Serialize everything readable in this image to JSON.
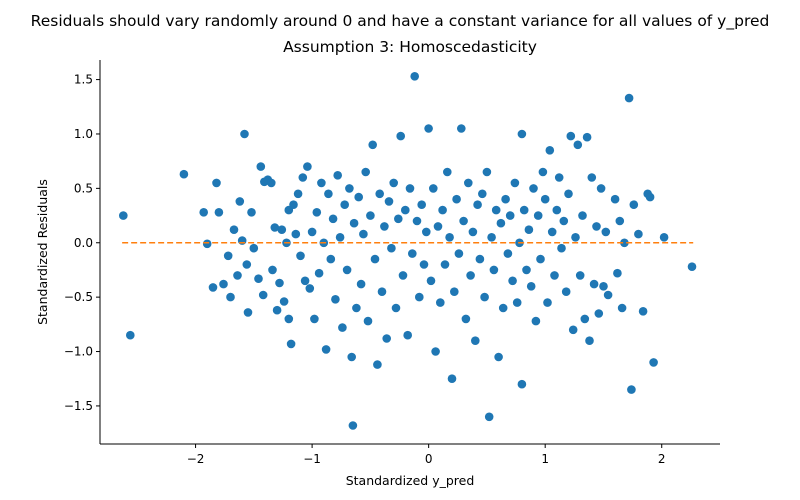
{
  "chart_data": {
    "type": "scatter",
    "suptitle": "Residuals should vary randomly around 0 and have a constant variance for all values of y_pred",
    "title": "Assumption 3: Homoscedasticity",
    "xlabel": "Standardized y_pred",
    "ylabel": "Standardized Residuals",
    "xlim": [
      -2.82,
      2.5
    ],
    "ylim": [
      -1.85,
      1.68
    ],
    "xticks": [
      -2,
      -1,
      0,
      1,
      2
    ],
    "xtick_labels": [
      "−2",
      "−1",
      "0",
      "1",
      "2"
    ],
    "yticks": [
      -1.5,
      -1.0,
      -0.5,
      0.0,
      0.5,
      1.0,
      1.5
    ],
    "ytick_labels": [
      "−1.5",
      "−1.0",
      "−0.5",
      "0.0",
      "0.5",
      "1.0",
      "1.5"
    ],
    "grid": false,
    "colors": {
      "points": "#1f77b4",
      "reference_line": "#ff7f0e"
    },
    "reference_line": {
      "y": 0,
      "x_range": [
        -2.63,
        2.27
      ],
      "style": "dashed"
    },
    "points": [
      [
        -2.62,
        0.25
      ],
      [
        -2.56,
        -0.85
      ],
      [
        -2.1,
        0.63
      ],
      [
        -1.93,
        0.28
      ],
      [
        -1.9,
        -0.01
      ],
      [
        -1.85,
        -0.41
      ],
      [
        -1.82,
        0.55
      ],
      [
        -1.8,
        0.28
      ],
      [
        -1.76,
        -0.38
      ],
      [
        -1.72,
        -0.12
      ],
      [
        -1.7,
        -0.5
      ],
      [
        -1.67,
        0.12
      ],
      [
        -1.64,
        -0.3
      ],
      [
        -1.62,
        0.38
      ],
      [
        -1.6,
        0.02
      ],
      [
        -1.58,
        1.0
      ],
      [
        -1.56,
        -0.2
      ],
      [
        -1.55,
        -0.64
      ],
      [
        -1.52,
        0.28
      ],
      [
        -1.5,
        -0.05
      ],
      [
        -1.46,
        -0.33
      ],
      [
        -1.44,
        0.7
      ],
      [
        -1.42,
        -0.48
      ],
      [
        -1.41,
        0.56
      ],
      [
        -1.38,
        0.58
      ],
      [
        -1.35,
        0.55
      ],
      [
        -1.34,
        -0.25
      ],
      [
        -1.32,
        0.14
      ],
      [
        -1.3,
        -0.62
      ],
      [
        -1.28,
        -0.37
      ],
      [
        -1.26,
        0.12
      ],
      [
        -1.24,
        -0.54
      ],
      [
        -1.22,
        0.0
      ],
      [
        -1.2,
        0.3
      ],
      [
        -1.2,
        -0.7
      ],
      [
        -1.18,
        -0.93
      ],
      [
        -1.16,
        0.35
      ],
      [
        -1.14,
        0.08
      ],
      [
        -1.12,
        0.45
      ],
      [
        -1.1,
        -0.12
      ],
      [
        -1.08,
        0.6
      ],
      [
        -1.06,
        -0.35
      ],
      [
        -1.04,
        0.7
      ],
      [
        -1.02,
        -0.42
      ],
      [
        -1.0,
        0.1
      ],
      [
        -0.98,
        -0.7
      ],
      [
        -0.96,
        0.28
      ],
      [
        -0.94,
        -0.28
      ],
      [
        -0.92,
        0.55
      ],
      [
        -0.9,
        0.0
      ],
      [
        -0.88,
        -0.98
      ],
      [
        -0.86,
        0.45
      ],
      [
        -0.84,
        -0.15
      ],
      [
        -0.82,
        0.22
      ],
      [
        -0.8,
        -0.52
      ],
      [
        -0.78,
        0.62
      ],
      [
        -0.76,
        0.05
      ],
      [
        -0.74,
        -0.78
      ],
      [
        -0.72,
        0.35
      ],
      [
        -0.7,
        -0.25
      ],
      [
        -0.68,
        0.5
      ],
      [
        -0.66,
        -1.05
      ],
      [
        -0.65,
        -1.68
      ],
      [
        -0.64,
        0.18
      ],
      [
        -0.62,
        -0.6
      ],
      [
        -0.6,
        0.42
      ],
      [
        -0.58,
        -0.38
      ],
      [
        -0.56,
        0.08
      ],
      [
        -0.54,
        0.65
      ],
      [
        -0.52,
        -0.72
      ],
      [
        -0.5,
        0.25
      ],
      [
        -0.48,
        0.9
      ],
      [
        -0.46,
        -0.15
      ],
      [
        -0.44,
        -1.12
      ],
      [
        -0.42,
        0.45
      ],
      [
        -0.4,
        -0.45
      ],
      [
        -0.38,
        0.15
      ],
      [
        -0.36,
        -0.88
      ],
      [
        -0.34,
        0.38
      ],
      [
        -0.32,
        -0.05
      ],
      [
        -0.3,
        0.55
      ],
      [
        -0.28,
        -0.6
      ],
      [
        -0.26,
        0.22
      ],
      [
        -0.24,
        0.98
      ],
      [
        -0.22,
        -0.3
      ],
      [
        -0.2,
        0.3
      ],
      [
        -0.18,
        -0.85
      ],
      [
        -0.16,
        0.5
      ],
      [
        -0.14,
        -0.1
      ],
      [
        -0.12,
        1.53
      ],
      [
        -0.1,
        0.2
      ],
      [
        -0.08,
        -0.5
      ],
      [
        -0.06,
        0.35
      ],
      [
        -0.04,
        -0.2
      ],
      [
        -0.02,
        0.1
      ],
      [
        0.0,
        1.05
      ],
      [
        0.02,
        -0.35
      ],
      [
        0.04,
        0.5
      ],
      [
        0.06,
        -1.0
      ],
      [
        0.08,
        0.15
      ],
      [
        0.1,
        -0.55
      ],
      [
        0.12,
        0.3
      ],
      [
        0.14,
        -0.2
      ],
      [
        0.16,
        0.65
      ],
      [
        0.18,
        0.05
      ],
      [
        0.2,
        -1.25
      ],
      [
        0.22,
        -0.45
      ],
      [
        0.24,
        0.4
      ],
      [
        0.26,
        -0.1
      ],
      [
        0.28,
        1.05
      ],
      [
        0.3,
        0.2
      ],
      [
        0.32,
        -0.7
      ],
      [
        0.34,
        0.55
      ],
      [
        0.36,
        -0.3
      ],
      [
        0.38,
        0.1
      ],
      [
        0.4,
        -0.9
      ],
      [
        0.42,
        0.35
      ],
      [
        0.44,
        -0.15
      ],
      [
        0.46,
        0.45
      ],
      [
        0.48,
        -0.5
      ],
      [
        0.5,
        0.65
      ],
      [
        0.52,
        -1.6
      ],
      [
        0.54,
        0.05
      ],
      [
        0.56,
        -0.25
      ],
      [
        0.58,
        0.3
      ],
      [
        0.6,
        -1.05
      ],
      [
        0.62,
        0.18
      ],
      [
        0.64,
        -0.6
      ],
      [
        0.66,
        0.4
      ],
      [
        0.68,
        -0.1
      ],
      [
        0.7,
        0.25
      ],
      [
        0.72,
        -0.35
      ],
      [
        0.74,
        0.55
      ],
      [
        0.76,
        -0.55
      ],
      [
        0.78,
        0.0
      ],
      [
        0.8,
        1.0
      ],
      [
        0.8,
        -1.3
      ],
      [
        0.82,
        0.3
      ],
      [
        0.84,
        -0.25
      ],
      [
        0.86,
        0.12
      ],
      [
        0.88,
        -0.4
      ],
      [
        0.9,
        0.5
      ],
      [
        0.92,
        -0.72
      ],
      [
        0.94,
        0.25
      ],
      [
        0.96,
        -0.15
      ],
      [
        0.98,
        0.65
      ],
      [
        1.0,
        0.4
      ],
      [
        1.02,
        -0.55
      ],
      [
        1.04,
        0.85
      ],
      [
        1.06,
        0.1
      ],
      [
        1.08,
        -0.3
      ],
      [
        1.1,
        0.3
      ],
      [
        1.12,
        0.6
      ],
      [
        1.14,
        -0.05
      ],
      [
        1.16,
        0.2
      ],
      [
        1.18,
        -0.45
      ],
      [
        1.2,
        0.45
      ],
      [
        1.22,
        0.98
      ],
      [
        1.24,
        -0.8
      ],
      [
        1.26,
        0.05
      ],
      [
        1.28,
        0.9
      ],
      [
        1.3,
        -0.3
      ],
      [
        1.32,
        0.25
      ],
      [
        1.34,
        -0.7
      ],
      [
        1.36,
        0.97
      ],
      [
        1.38,
        -0.9
      ],
      [
        1.4,
        0.6
      ],
      [
        1.42,
        -0.38
      ],
      [
        1.44,
        0.15
      ],
      [
        1.46,
        -0.65
      ],
      [
        1.48,
        0.5
      ],
      [
        1.5,
        -0.4
      ],
      [
        1.52,
        0.1
      ],
      [
        1.54,
        -0.48
      ],
      [
        1.6,
        0.4
      ],
      [
        1.62,
        -0.28
      ],
      [
        1.64,
        0.2
      ],
      [
        1.66,
        -0.6
      ],
      [
        1.68,
        0.0
      ],
      [
        1.72,
        1.33
      ],
      [
        1.74,
        -1.35
      ],
      [
        1.76,
        0.35
      ],
      [
        1.8,
        0.08
      ],
      [
        1.84,
        -0.63
      ],
      [
        1.88,
        0.45
      ],
      [
        1.9,
        0.42
      ],
      [
        1.93,
        -1.1
      ],
      [
        2.02,
        0.05
      ],
      [
        2.26,
        -0.22
      ]
    ]
  }
}
